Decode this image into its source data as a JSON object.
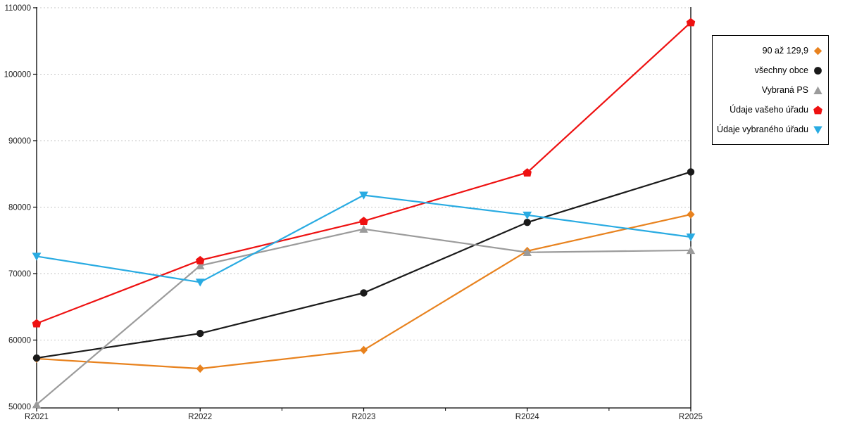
{
  "chart_data": {
    "type": "line",
    "categories": [
      "R2021",
      "R2022",
      "R2023",
      "R2024",
      "R2025"
    ],
    "series": [
      {
        "name": "90 až 129,9",
        "marker": "diamond",
        "color": "#E8821E",
        "values": [
          57200,
          55700,
          58500,
          73400,
          78900
        ]
      },
      {
        "name": "všechny obce",
        "marker": "circle",
        "color": "#1a1a1a",
        "values": [
          57300,
          61000,
          67100,
          77700,
          85300
        ]
      },
      {
        "name": "Vybraná PS",
        "marker": "triangle-up",
        "color": "#9B9B9B",
        "values": [
          50300,
          71200,
          76700,
          73200,
          73500
        ]
      },
      {
        "name": "Údaje vašeho úřadu",
        "marker": "pentagon",
        "color": "#EE1111",
        "values": [
          62500,
          72000,
          77900,
          85200,
          107800
        ]
      },
      {
        "name": "Údaje vybraného úřadu",
        "marker": "triangle-down",
        "color": "#29ABE2",
        "values": [
          72600,
          68700,
          81800,
          78800,
          75500
        ]
      }
    ],
    "title": "",
    "xlabel": "",
    "ylabel": "",
    "ylim": [
      50000,
      110000
    ],
    "ytick_step": 10000,
    "yticks": [
      "50000",
      "60000",
      "70000",
      "80000",
      "90000",
      "100000",
      "110000"
    ],
    "grid": "horizontal-dotted",
    "grid_color": "#C6C6C6",
    "axis_color": "#000000",
    "legend_position": "right",
    "legend_entries": [
      "90 až 129,9",
      "všechny obce",
      "Vybraná PS",
      "Údaje vašeho úřadu",
      "Údaje vybraného úřadu"
    ]
  }
}
